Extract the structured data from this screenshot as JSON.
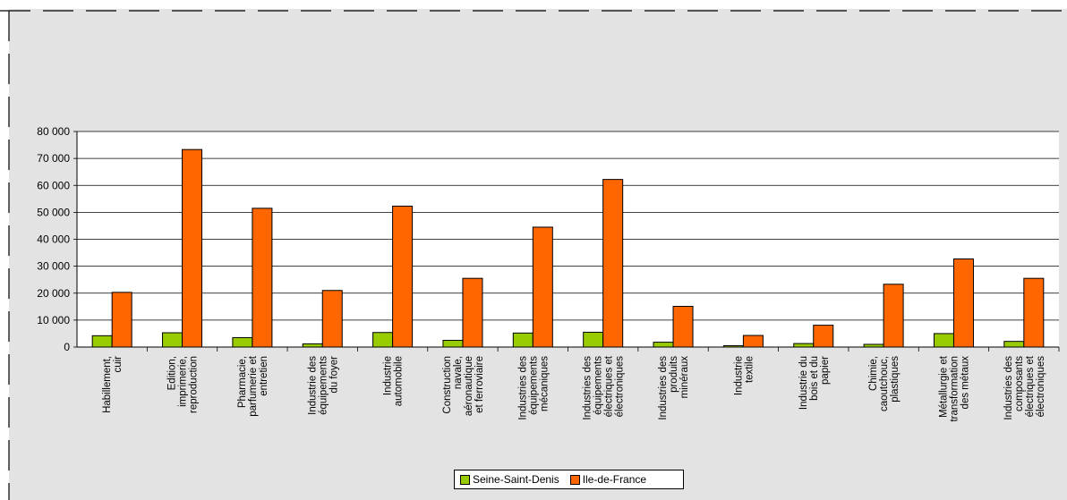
{
  "chart_data": {
    "type": "bar",
    "title": "",
    "xlabel": "",
    "ylabel": "",
    "ylim": [
      0,
      80000
    ],
    "yticks": [
      "0",
      "10 000",
      "20 000",
      "30 000",
      "40 000",
      "50 000",
      "60 000",
      "70 000",
      "80 000"
    ],
    "grid": true,
    "legend_position": "bottom",
    "categories": [
      "Habillement,\ncuir",
      "Edition,\nimprimerie,\nreproduction",
      "Pharmacie,\nparfumerie et\nentretien",
      "Industrie des\néquipements\ndu foyer",
      "Industrie\nautomobile",
      "Construction\nnavale,\naéronautique\net ferroviaire",
      "Industries des\néquipements\nmécaniques",
      "Industries des\néquipements\nélectriques et\nélectroniques",
      "Industries des\nproduits\nminéraux",
      "Industrie\ntextile",
      "Industrie du\nbois et du\npapier",
      "Chimie,\ncaoutchouc,\nplastiques",
      "Métallurgie et\ntransformation\ndes métaux",
      "Industries des\ncomposants\nélectriques et\nélectroniques"
    ],
    "series": [
      {
        "name": "Seine-Saint-Denis",
        "color": "#99cc00",
        "values": [
          4200,
          5300,
          3500,
          1200,
          5400,
          2500,
          5200,
          5500,
          1800,
          500,
          1300,
          1000,
          5000,
          2100
        ]
      },
      {
        "name": "Ile-de-France",
        "color": "#ff6600",
        "values": [
          20300,
          73300,
          51500,
          21000,
          52300,
          25500,
          44500,
          62200,
          15100,
          4300,
          8100,
          23300,
          32700,
          25500
        ]
      }
    ]
  }
}
